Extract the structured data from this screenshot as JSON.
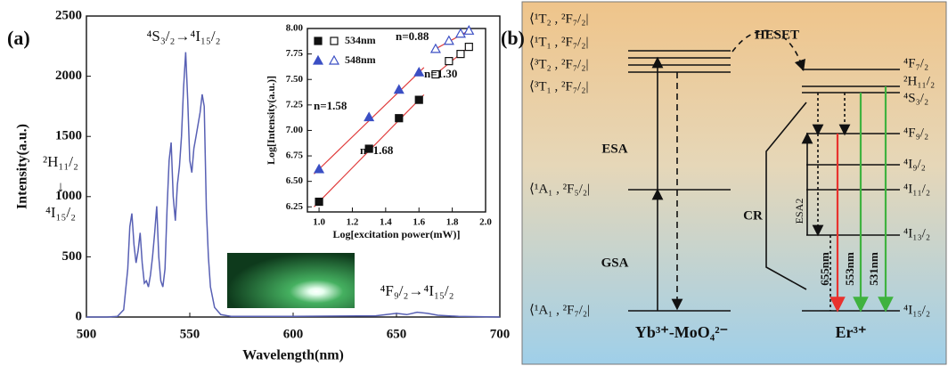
{
  "chart_data": [
    {
      "type": "line",
      "panel_label": "(a)",
      "x_label": "Wavelength(nm)",
      "y_label": "Intensity(a.u.)",
      "x": [
        500,
        510,
        515,
        518,
        520,
        521,
        522,
        523,
        524,
        525,
        526,
        527,
        528,
        529,
        530,
        531,
        532,
        533,
        534,
        535,
        536,
        537,
        538,
        539,
        540,
        541,
        542,
        543,
        544,
        545,
        546,
        547,
        548,
        549,
        550,
        551,
        552,
        553,
        554,
        555,
        556,
        557,
        558,
        559,
        560,
        562,
        565,
        570,
        600,
        640,
        650,
        655,
        660,
        665,
        670,
        680,
        700
      ],
      "values": [
        0,
        0,
        5,
        60,
        400,
        750,
        860,
        600,
        450,
        550,
        700,
        450,
        280,
        300,
        250,
        350,
        500,
        700,
        920,
        500,
        300,
        250,
        400,
        900,
        1300,
        1450,
        1000,
        800,
        1100,
        1250,
        1500,
        1900,
        2200,
        1800,
        1300,
        1200,
        1400,
        1500,
        1600,
        1700,
        1850,
        1750,
        900,
        500,
        250,
        80,
        20,
        5,
        5,
        10,
        30,
        20,
        40,
        30,
        15,
        5,
        0
      ],
      "color": "#5860b4",
      "xlim": [
        500,
        700
      ],
      "xticks": [
        500,
        550,
        600,
        650,
        700
      ],
      "ylim": [
        0,
        2500
      ],
      "yticks": [
        0,
        500,
        1000,
        1500,
        2000,
        2500
      ],
      "annotations": [
        "⁴S₃/₂→⁴I₁₅/₂",
        "²H₁₁/₂",
        "↓",
        "⁴I₁₅/₂",
        "⁴F₉/₂→⁴I₁₅/₂"
      ]
    },
    {
      "type": "scatter",
      "x_label": "Log[excitation power(mW)]",
      "y_label": "Log[Intensity(a.u.)]",
      "xlim": [
        0.93,
        2.0
      ],
      "xticks": [
        {
          "value": 1.0,
          "label": "1.0"
        },
        1.2,
        1.4,
        1.6,
        1.8,
        {
          "value": 2.0,
          "label": "2.0"
        }
      ],
      "ylim": [
        6.2,
        8.0
      ],
      "yticks": [
        6.25,
        {
          "value": 6.5,
          "label": "6.50"
        },
        6.75,
        {
          "value": 7.0,
          "label": "7.00"
        },
        7.25,
        {
          "value": 7.5,
          "label": "7.50"
        },
        7.75,
        {
          "value": 8.0,
          "label": "8.00"
        }
      ],
      "fit_color": "#e03c3c",
      "series": [
        {
          "name": "534nm",
          "color": "#111111",
          "marker": "square",
          "segments": [
            {
              "fill": "filled",
              "x": [
                1.0,
                1.3,
                1.48,
                1.6
              ],
              "values": [
                6.3,
                6.82,
                7.12,
                7.3
              ]
            },
            {
              "fill": "open",
              "x": [
                1.7,
                1.78,
                1.85,
                1.9
              ],
              "values": [
                7.55,
                7.68,
                7.75,
                7.82
              ]
            }
          ]
        },
        {
          "name": "548nm",
          "color": "#3b4fc4",
          "marker": "triangle",
          "segments": [
            {
              "fill": "filled",
              "x": [
                1.0,
                1.3,
                1.48,
                1.6
              ],
              "values": [
                6.62,
                7.13,
                7.4,
                7.57
              ]
            },
            {
              "fill": "open",
              "x": [
                1.7,
                1.78,
                1.85,
                1.9
              ],
              "values": [
                7.8,
                7.88,
                7.95,
                7.98
              ]
            }
          ]
        }
      ],
      "annotations": [
        "n=0.88",
        "n=1.30",
        "n=1.58",
        "n=1.68"
      ]
    }
  ],
  "diagram": {
    "panel_label": "(b)",
    "yb_levels": [
      "⟨¹T₂ , ²F₇/₂|",
      "⟨¹T₁ , ²F₇/₂|",
      "⟨³T₂ , ²F₇/₂|",
      "⟨³T₁ , ²F₇/₂|",
      "⟨¹A₁ , ²F₅/₂|",
      "⟨¹A₁ , ²F₇/₂|"
    ],
    "er_levels": [
      "⁴F₇/₂",
      "²H₁₁/₂",
      "⁴S₃/₂",
      "⁴F₉/₂",
      "⁴I₉/₂",
      "⁴I₁₁/₂",
      "⁴I₁₃/₂",
      "⁴I₁₅/₂"
    ],
    "processes": [
      "HESET",
      "ESA",
      "GSA",
      "CR",
      "ESA2"
    ],
    "emissions": [
      "655nm",
      "553nm",
      "531nm"
    ],
    "hosts": [
      "Yb³⁺-MoO₄²⁻",
      "Er³⁺"
    ]
  }
}
